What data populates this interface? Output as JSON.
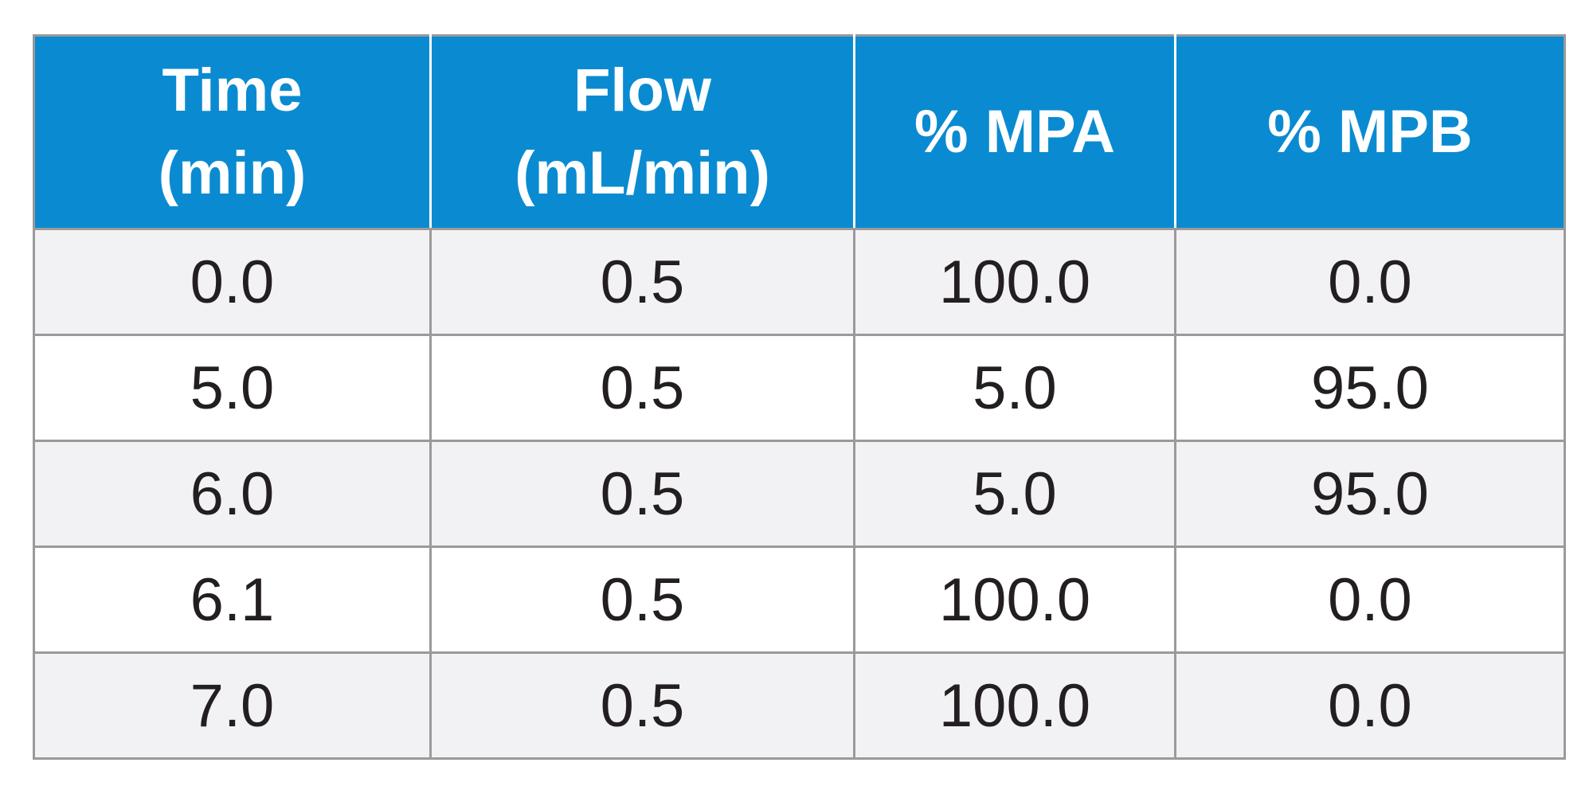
{
  "table": {
    "headers": [
      {
        "lines": [
          "Time",
          "(min)"
        ]
      },
      {
        "lines": [
          "Flow",
          "(mL/min)"
        ]
      },
      {
        "lines": [
          "% MPA"
        ]
      },
      {
        "lines": [
          "% MPB"
        ]
      }
    ],
    "rows": [
      [
        "0.0",
        "0.5",
        "100.0",
        "0.0"
      ],
      [
        "5.0",
        "0.5",
        "5.0",
        "95.0"
      ],
      [
        "6.0",
        "0.5",
        "5.0",
        "95.0"
      ],
      [
        "6.1",
        "0.5",
        "100.0",
        "0.0"
      ],
      [
        "7.0",
        "0.5",
        "100.0",
        "0.0"
      ]
    ]
  },
  "colors": {
    "header_background": "#0a8bd1",
    "header_text": "#ffffff",
    "row_alt_background": "#f2f2f4",
    "row_background": "#ffffff",
    "grid_line": "#9a9a9a",
    "cell_text": "#231f20"
  }
}
